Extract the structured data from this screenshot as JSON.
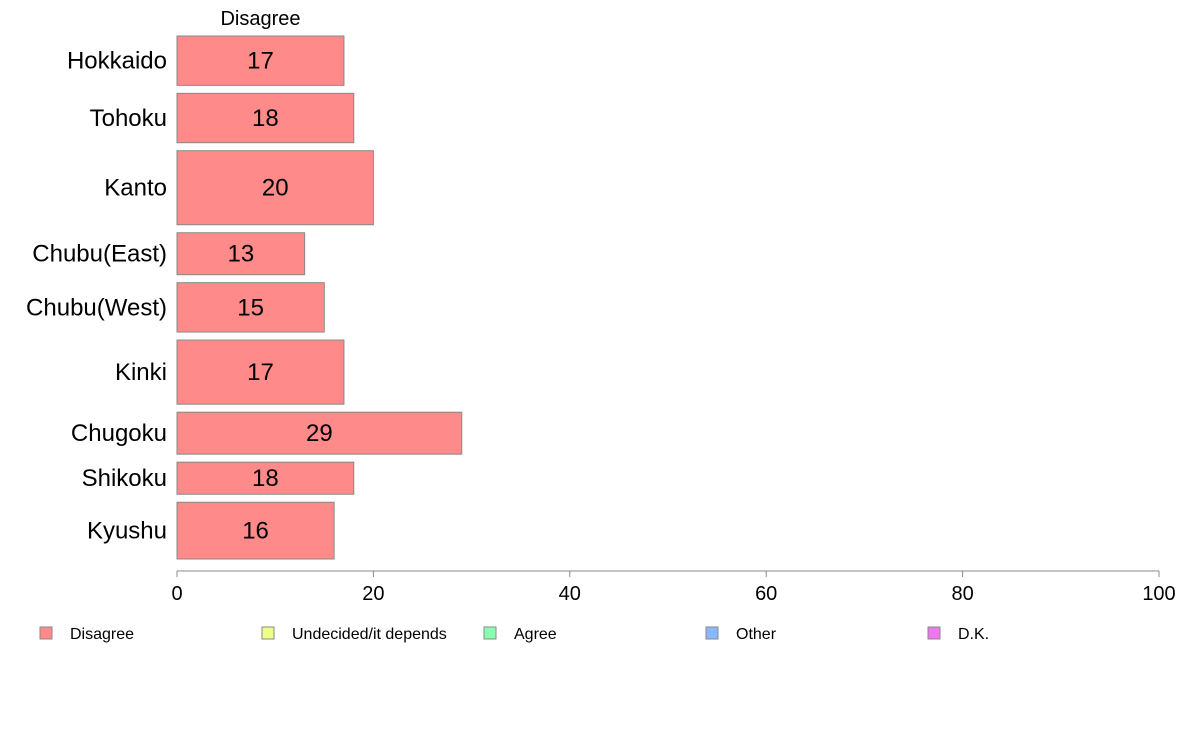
{
  "chart_data": {
    "type": "bar",
    "orientation": "horizontal",
    "stacked": true,
    "categories": [
      "Hokkaido",
      "Tohoku",
      "Kanto",
      "Chubu(East)",
      "Chubu(West)",
      "Kinki",
      "Chugoku",
      "Shikoku",
      "Kyushu"
    ],
    "series": [
      {
        "name": "Disagree",
        "values": [
          17,
          18,
          20,
          13,
          15,
          17,
          29,
          18,
          16
        ],
        "color": "#ff8a8a"
      }
    ],
    "series_header": "Disagree",
    "legend": [
      {
        "label": "Disagree",
        "color": "#ff8a8a"
      },
      {
        "label": "Undecided/it depends",
        "color": "#eeff88"
      },
      {
        "label": "Agree",
        "color": "#88ffb0"
      },
      {
        "label": "Other",
        "color": "#88b8ff"
      },
      {
        "label": "D.K.",
        "color": "#ee77ee"
      }
    ],
    "xlim": [
      0,
      100
    ],
    "xticks": [
      0,
      20,
      40,
      60,
      80,
      100
    ],
    "bar_thickness_weights": [
      1.0,
      1.0,
      1.5,
      0.85,
      1.0,
      1.3,
      0.85,
      0.65,
      1.15
    ],
    "grid": false,
    "legend_position": "bottom",
    "title": "",
    "xlabel": "",
    "ylabel": ""
  }
}
